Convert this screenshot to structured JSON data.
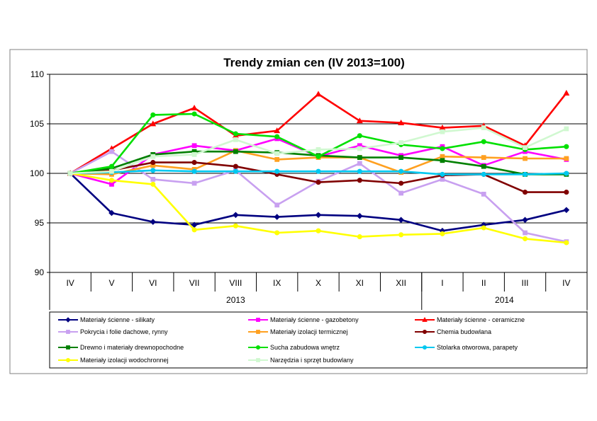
{
  "chart_data": {
    "type": "line",
    "title": "Trendy zmian cen (IV 2013=100)",
    "xlabel": "",
    "ylabel": "",
    "ylim": [
      90,
      110
    ],
    "yticks": [
      90,
      95,
      100,
      105,
      110
    ],
    "grid": true,
    "legend_position": "bottom",
    "categories": [
      "IV",
      "V",
      "VI",
      "VII",
      "VIII",
      "IX",
      "X",
      "XI",
      "XII",
      "I",
      "II",
      "III",
      "IV"
    ],
    "year_groups": [
      {
        "label": "2013",
        "from": 0,
        "to": 8
      },
      {
        "label": "2014",
        "from": 9,
        "to": 12
      }
    ],
    "series": [
      {
        "name": "Materiały ścienne - silikaty",
        "color": "#000080",
        "marker": "diamond",
        "values": [
          100,
          96.0,
          95.1,
          94.8,
          95.8,
          95.6,
          95.8,
          95.7,
          95.3,
          94.2,
          94.8,
          95.3,
          96.3
        ]
      },
      {
        "name": "Materiały ścienne - gazobetony",
        "color": "#ff00ff",
        "marker": "square",
        "values": [
          100,
          98.9,
          101.9,
          102.8,
          102.3,
          103.5,
          101.7,
          102.8,
          101.8,
          102.7,
          100.8,
          102.2,
          101.4
        ]
      },
      {
        "name": "Materiały ścienne - ceramiczne",
        "color": "#ff0000",
        "marker": "triangle",
        "values": [
          100,
          102.5,
          105.0,
          106.6,
          103.8,
          104.3,
          108.0,
          105.3,
          105.1,
          104.6,
          104.8,
          102.8,
          108.1
        ]
      },
      {
        "name": "Pokrycia i folie dachowe, rynny",
        "color": "#c8a0f0",
        "marker": "square",
        "values": [
          100,
          102.2,
          99.4,
          99.0,
          100.3,
          96.8,
          99.2,
          101.0,
          98.0,
          99.4,
          97.9,
          94.0,
          93.1
        ]
      },
      {
        "name": "Materiały izolacji termicznej",
        "color": "#ffa020",
        "marker": "square",
        "values": [
          100,
          99.9,
          100.8,
          100.4,
          102.3,
          101.4,
          101.6,
          101.6,
          100.1,
          101.7,
          101.6,
          101.5,
          101.5
        ]
      },
      {
        "name": "Chemia budowlana",
        "color": "#800000",
        "marker": "circle",
        "values": [
          100,
          100.3,
          101.1,
          101.1,
          100.7,
          99.9,
          99.1,
          99.3,
          99.0,
          99.8,
          99.9,
          98.1,
          98.1
        ]
      },
      {
        "name": "Drewno i materiały drewnopochodne",
        "color": "#008000",
        "marker": "square",
        "values": [
          100,
          100.5,
          101.9,
          102.2,
          102.2,
          102.1,
          101.8,
          101.6,
          101.6,
          101.3,
          100.7,
          99.9,
          99.9
        ]
      },
      {
        "name": "Sucha zabudowa wnętrz",
        "color": "#00e000",
        "marker": "circle",
        "values": [
          100,
          100.7,
          105.9,
          106.0,
          104.0,
          103.7,
          101.7,
          103.8,
          102.9,
          102.5,
          103.2,
          102.4,
          102.7
        ]
      },
      {
        "name": "Stolarka otworowa, parapety",
        "color": "#00c8f0",
        "marker": "circle",
        "values": [
          100,
          100.1,
          100.3,
          100.2,
          100.2,
          100.2,
          100.2,
          100.2,
          100.2,
          99.9,
          99.9,
          99.9,
          100.0
        ]
      },
      {
        "name": "Materiały izolacji wodochronnej",
        "color": "#ffff00",
        "marker": "circle",
        "values": [
          100,
          99.3,
          98.9,
          94.3,
          94.7,
          94.0,
          94.2,
          93.6,
          93.8,
          93.9,
          94.5,
          93.4,
          93.0
        ]
      },
      {
        "name": "Narzędzia i sprzęt budowlany",
        "color": "#d0f8d0",
        "marker": "square",
        "values": [
          100,
          100.2,
          101.7,
          101.9,
          103.4,
          102.0,
          102.4,
          102.5,
          103.1,
          104.2,
          104.6,
          102.6,
          104.5
        ]
      }
    ]
  }
}
